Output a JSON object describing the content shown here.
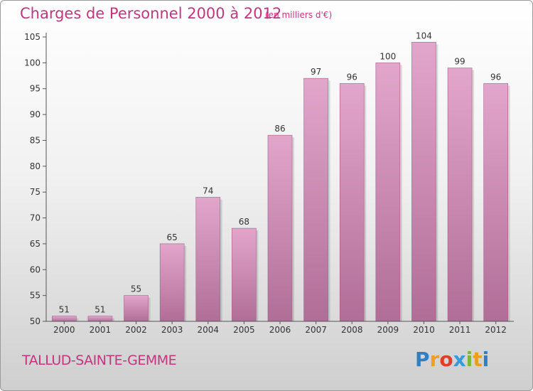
{
  "title": "Charges de Personnel 2000 à 2012",
  "subtitle": "(en milliers d'€)",
  "commune": "TALLUD-SAINTE-GEMME",
  "logo": {
    "text": "Proxiti",
    "letters": [
      {
        "ch": "P",
        "color": "#2f7fc2"
      },
      {
        "ch": "r",
        "color": "#f0a020"
      },
      {
        "ch": "o",
        "color": "#e23d2a"
      },
      {
        "ch": "x",
        "color": "#3a9ad9"
      },
      {
        "ch": "i",
        "color": "#7ab83a"
      },
      {
        "ch": "t",
        "color": "#e8a020"
      },
      {
        "ch": "i",
        "color": "#2f7fc2"
      }
    ]
  },
  "colors": {
    "bar_top": "#e3a6cb",
    "bar_bottom": "#b06e97",
    "text": "#c2367f"
  },
  "chart_data": {
    "type": "bar",
    "categories": [
      "2000",
      "2001",
      "2002",
      "2003",
      "2004",
      "2005",
      "2006",
      "2007",
      "2008",
      "2009",
      "2010",
      "2011",
      "2012"
    ],
    "values": [
      51,
      51,
      55,
      65,
      74,
      68,
      86,
      97,
      96,
      100,
      104,
      99,
      96
    ],
    "ylim": [
      50,
      105
    ],
    "yticks": [
      50,
      55,
      60,
      65,
      70,
      75,
      80,
      85,
      90,
      95,
      100,
      105
    ],
    "grid": false
  }
}
